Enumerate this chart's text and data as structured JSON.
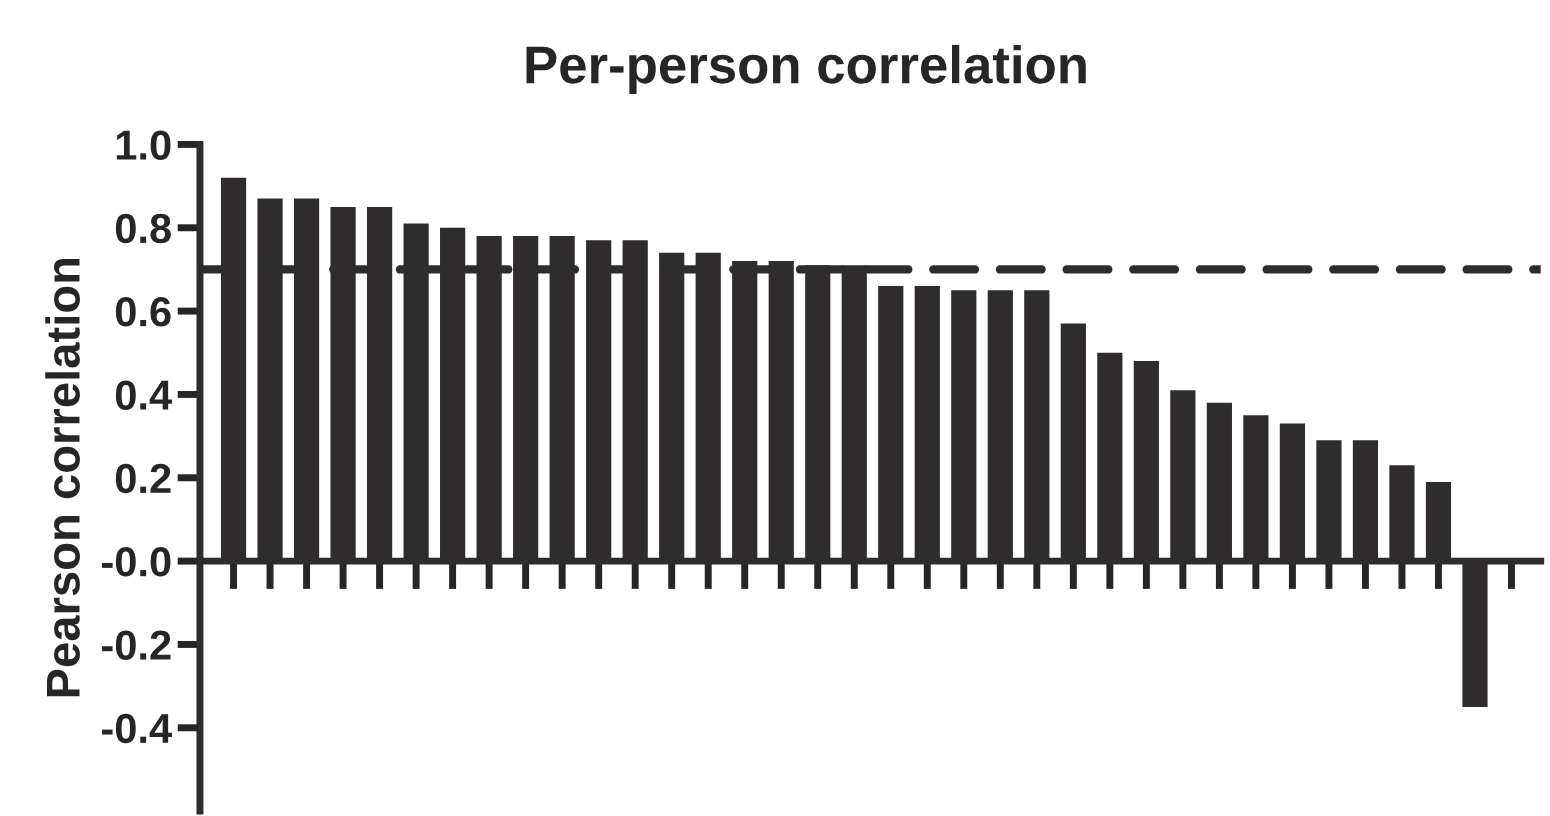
{
  "chart_data": {
    "type": "bar",
    "title": "Per-person correlation",
    "ylabel": "Pearson correlation",
    "categories": [
      null,
      null,
      null,
      null,
      null,
      null,
      null,
      null,
      null,
      null,
      null,
      null,
      null,
      null,
      null,
      null,
      null,
      null,
      null,
      null,
      null,
      null,
      null,
      null,
      null,
      null,
      null,
      null,
      null,
      null,
      null,
      null,
      null,
      null,
      null,
      null
    ],
    "values": [
      0.92,
      0.87,
      0.87,
      0.85,
      0.85,
      0.81,
      0.8,
      0.78,
      0.78,
      0.78,
      0.77,
      0.77,
      0.74,
      0.74,
      0.72,
      0.72,
      0.71,
      0.71,
      0.66,
      0.66,
      0.65,
      0.65,
      0.65,
      0.57,
      0.5,
      0.48,
      0.41,
      0.38,
      0.35,
      0.33,
      0.29,
      0.29,
      0.23,
      0.19,
      -0.35,
      0
    ],
    "color": "#2e2c2d",
    "ylim": [
      -0.6,
      1.0
    ],
    "yticks": [
      {
        "value": -0.4,
        "label": "-0.4"
      },
      {
        "value": -0.2,
        "label": "-0.2"
      },
      {
        "value": 0,
        "label": "-0.0"
      },
      {
        "value": 0.2,
        "label": "0.2"
      },
      {
        "value": 0.4,
        "label": "0.4"
      },
      {
        "value": 0.6,
        "label": "0.6"
      },
      {
        "value": 0.8,
        "label": "0.8"
      },
      {
        "value": 1.0,
        "label": "1.0"
      }
    ],
    "ref_lines": [
      {
        "axis": "y",
        "value": 0.7,
        "label": null,
        "color": "#2e2c2d",
        "line_style": "dashed"
      }
    ],
    "tick_labels": "y",
    "legend": false
  }
}
